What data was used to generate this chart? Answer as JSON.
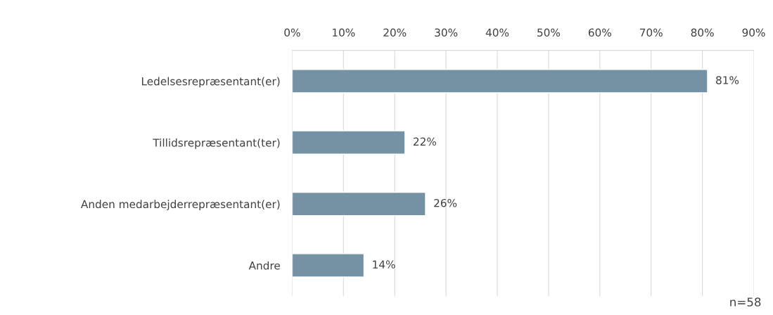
{
  "chart_data": {
    "type": "bar",
    "orientation": "horizontal",
    "categories": [
      "Ledelsesrepræsentant(er)",
      "Tillidsrepræsentant(ter)",
      "Anden medarbejderrepræsentant(er)",
      "Andre"
    ],
    "values": [
      81,
      22,
      26,
      14
    ],
    "color": "#7591a4",
    "value_labels": [
      "81%",
      "22%",
      "26%",
      "14%"
    ],
    "xlim": [
      0,
      90
    ],
    "xticks": [
      {
        "value": 0,
        "label": "0%"
      },
      {
        "value": 10,
        "label": "10%"
      },
      {
        "value": 20,
        "label": "20%"
      },
      {
        "value": 30,
        "label": "30%"
      },
      {
        "value": 40,
        "label": "40%"
      },
      {
        "value": 50,
        "label": "50%"
      },
      {
        "value": 60,
        "label": "60%"
      },
      {
        "value": 70,
        "label": "70%"
      },
      {
        "value": 80,
        "label": "80%"
      },
      {
        "value": 90,
        "label": "90%"
      }
    ],
    "grid": "x",
    "annotations": [
      "n=58"
    ]
  }
}
